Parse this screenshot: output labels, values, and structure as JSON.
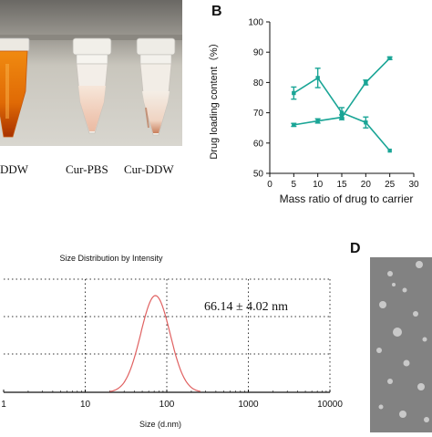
{
  "panel_a": {
    "tube_labels": [
      "DDW",
      "Cur-PBS",
      "Cur-DDW"
    ]
  },
  "panel_letters": {
    "b": "B",
    "d": "D"
  },
  "chart_data": [
    {
      "type": "line",
      "panel": "B",
      "ylabel": "Drug loading content（%）",
      "xlabel": "Mass ratio of drug to carrier",
      "xlim": [
        0,
        30
      ],
      "ylim": [
        50,
        100
      ],
      "x_ticks": [
        "0",
        "5",
        "10",
        "15",
        "20",
        "25",
        "30"
      ],
      "y_ticks": [
        "50",
        "60",
        "70",
        "80",
        "90",
        "100"
      ],
      "x": [
        5,
        10,
        15,
        20,
        25
      ],
      "series": [
        {
          "values": [
            66,
            67.3,
            68.5,
            80,
            88
          ],
          "errors": [
            0.5,
            0.7,
            0.8,
            0.8,
            0.4
          ]
        },
        {
          "values": [
            76.5,
            81.5,
            70,
            66.8,
            57.5
          ],
          "errors": [
            2,
            3.2,
            1.7,
            1.8,
            0
          ]
        }
      ],
      "color": "#1aa596",
      "grid": false
    },
    {
      "type": "line",
      "panel": "C",
      "title": "Size Distribution by Intensity",
      "xlabel": "Size (d.nm)",
      "x_scale": "log",
      "x_ticks": [
        "1",
        "10",
        "100",
        "1000",
        "10000"
      ],
      "annotation": "66.14 ± 4.02 nm",
      "peak_size": 66.14,
      "peak_sd": 4.02,
      "color": "#e06060",
      "grid": true
    }
  ]
}
